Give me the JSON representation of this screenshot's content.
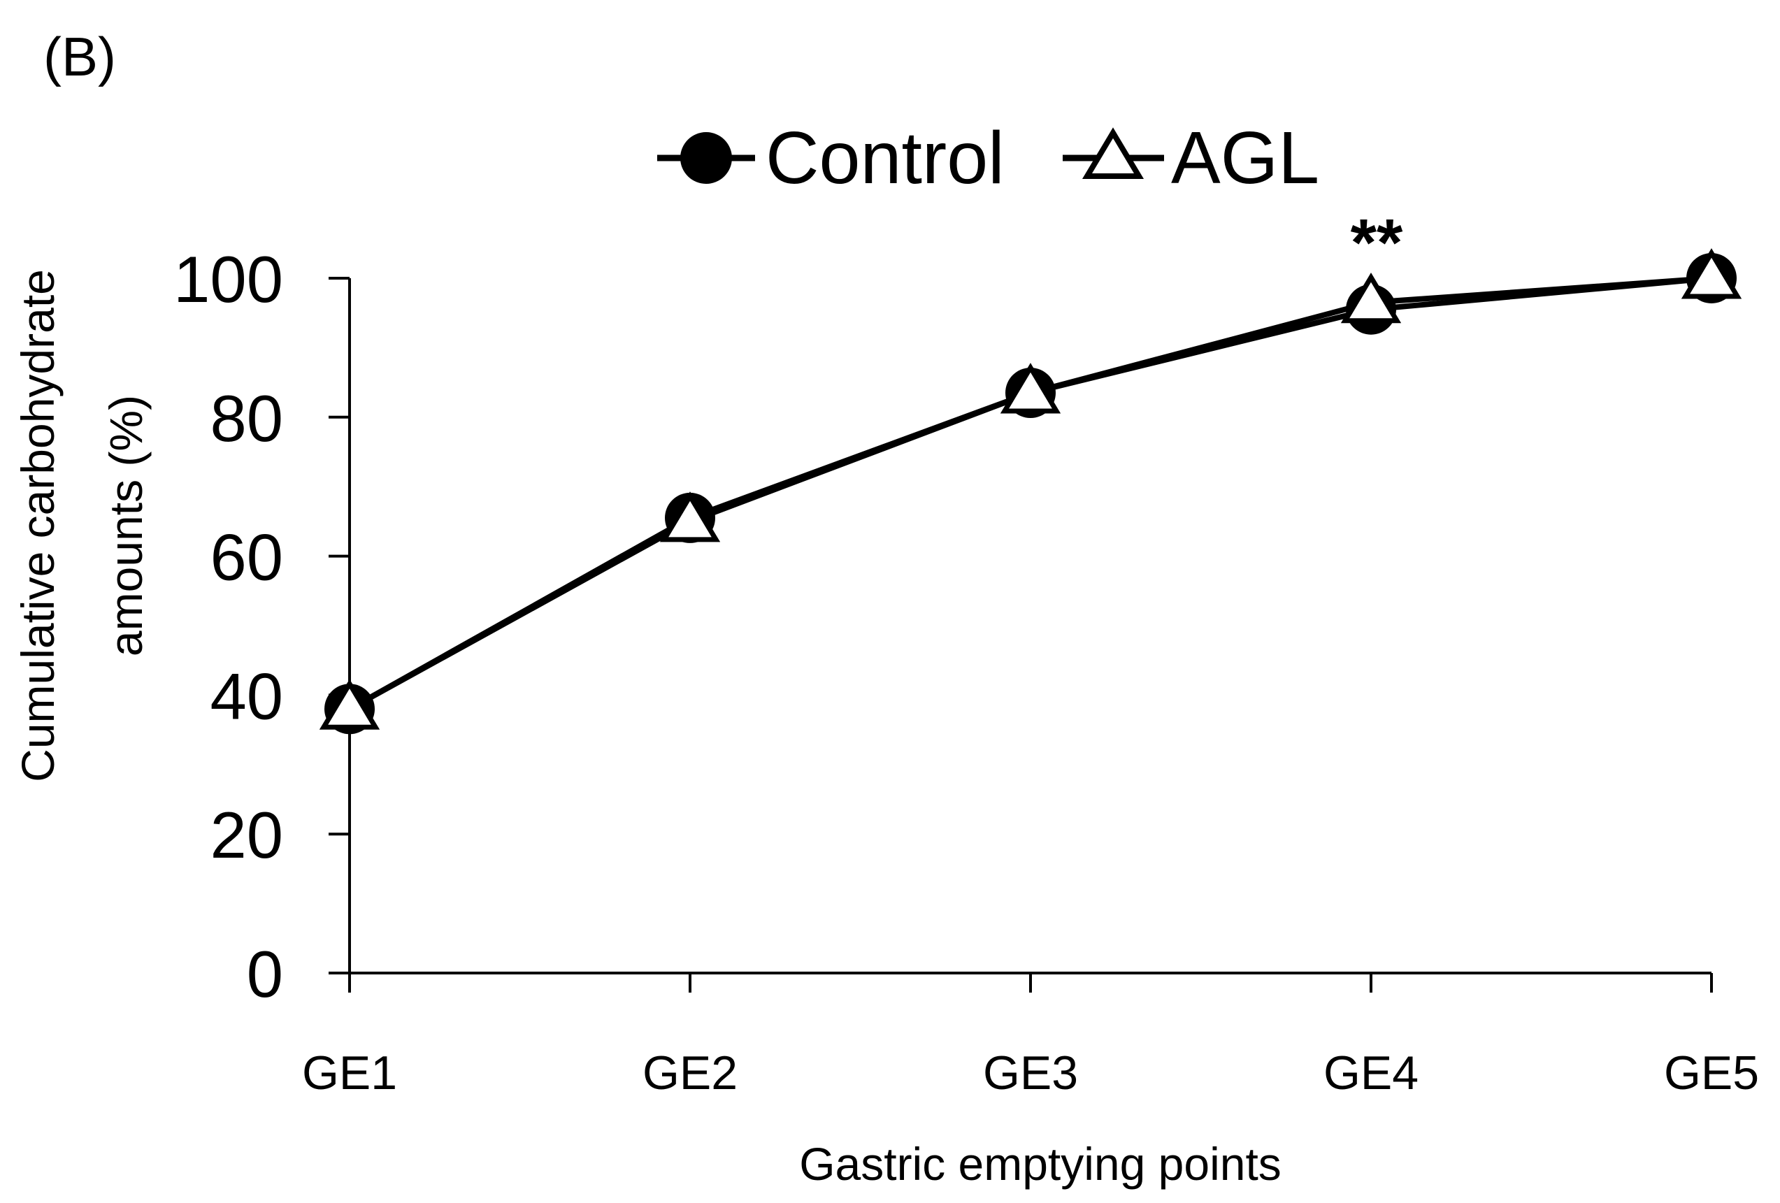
{
  "panel_label": "(B)",
  "chart_data": {
    "type": "line",
    "title": "",
    "xlabel": "Gastric emptying points",
    "ylabel_line1": "Cumulative carbohydrate",
    "ylabel_line2": "amounts (%)",
    "categories": [
      "GE1",
      "GE2",
      "GE3",
      "GE4",
      "GE5"
    ],
    "ylim": [
      0,
      100
    ],
    "yticks": [
      0,
      20,
      40,
      60,
      80,
      100
    ],
    "grid": false,
    "legend_position": "top-center",
    "series": [
      {
        "name": "Control",
        "marker": "filled-circle",
        "values": [
          38,
          65.5,
          83.5,
          95.5,
          100
        ]
      },
      {
        "name": "AGL",
        "marker": "open-triangle",
        "values": [
          38,
          65,
          83.5,
          96.5,
          100
        ]
      }
    ],
    "annotations": [
      {
        "text": "**",
        "category": "GE4"
      }
    ],
    "colors": {
      "line": "#000000",
      "marker_fill_open": "#ffffff",
      "marker_fill_solid": "#000000"
    }
  }
}
